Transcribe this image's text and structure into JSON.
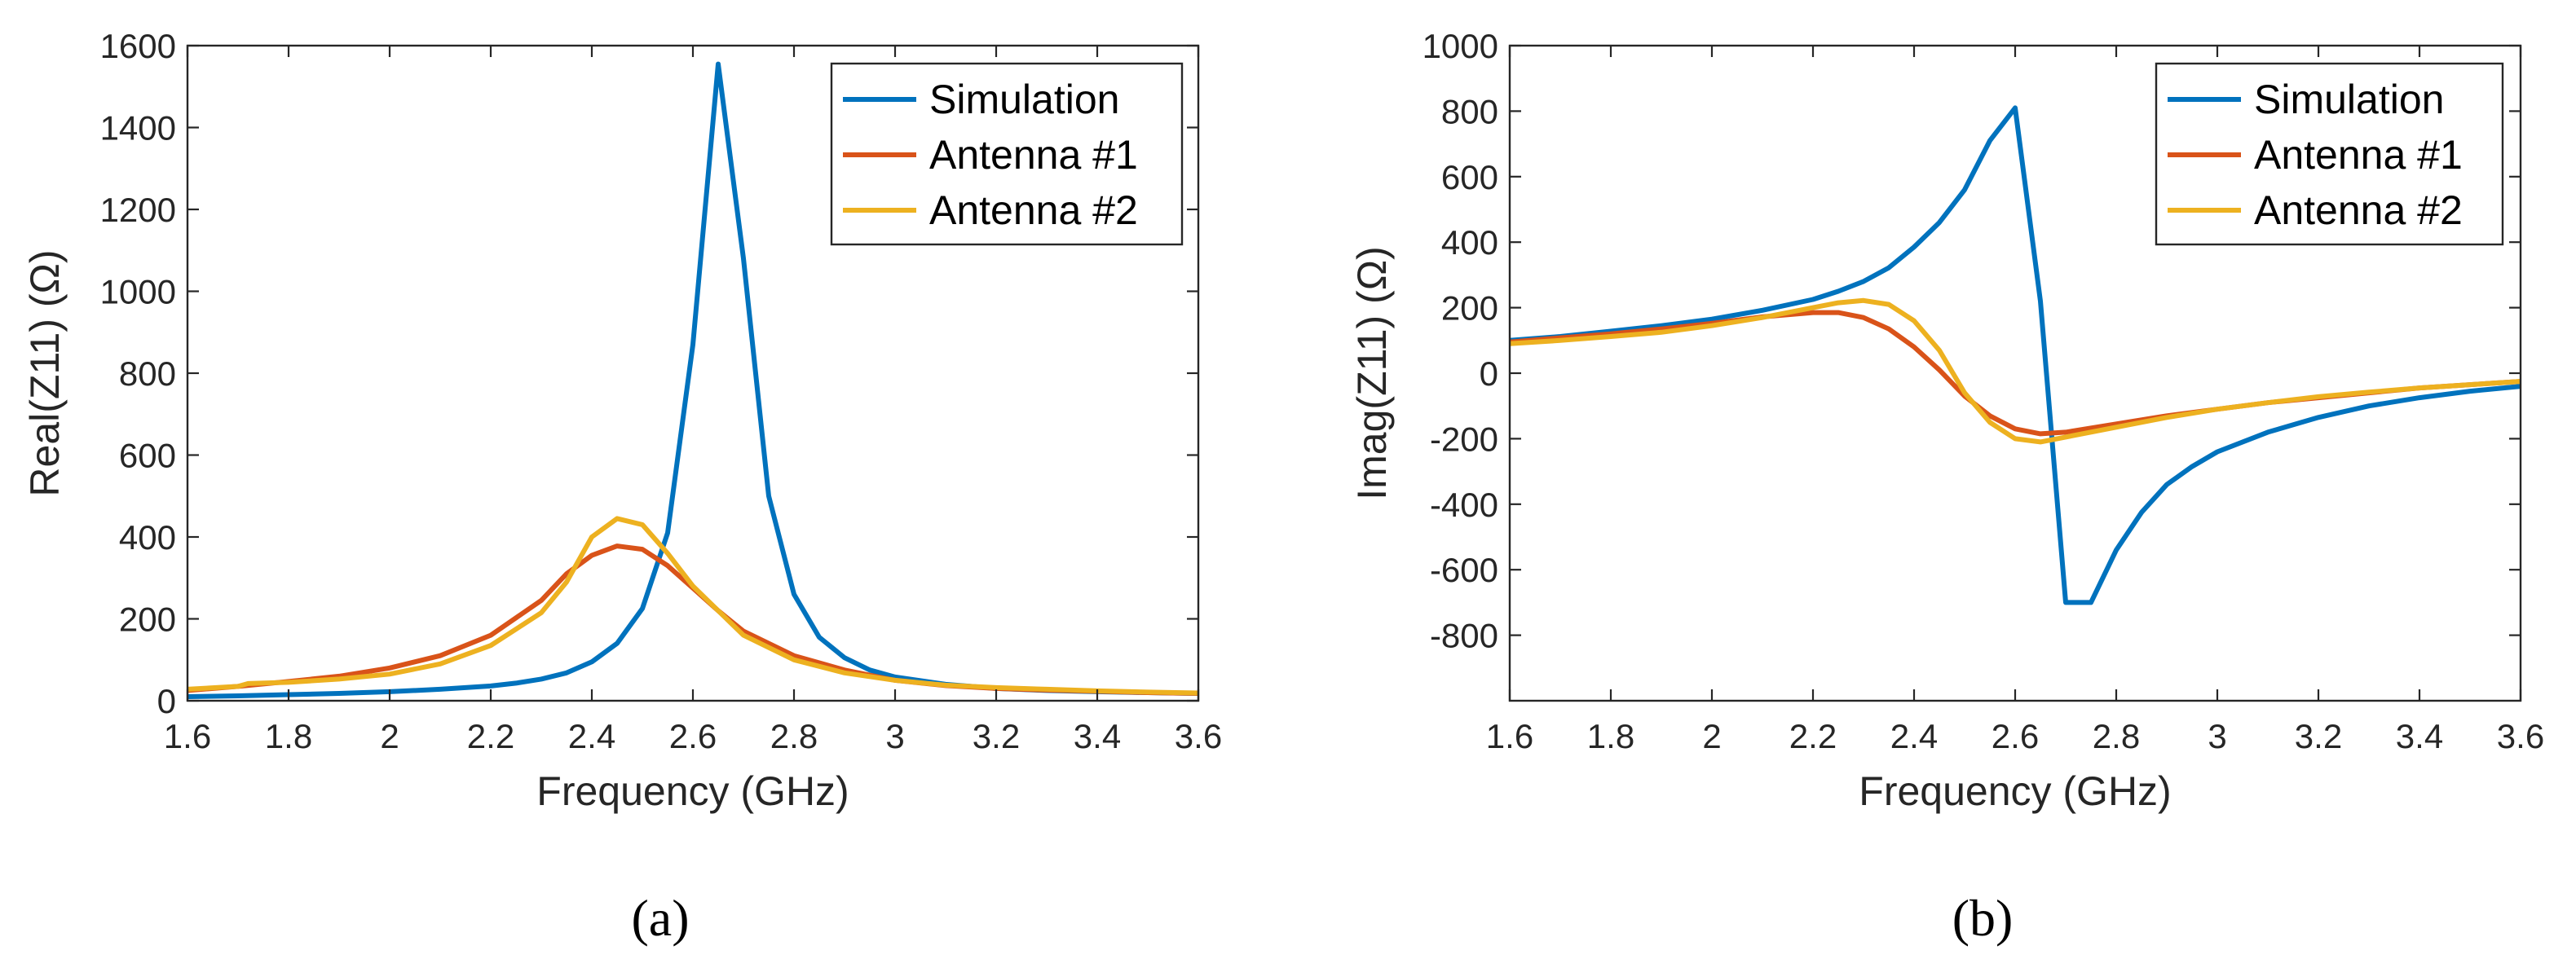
{
  "chart_data": [
    {
      "type": "line",
      "panel_label": "(a)",
      "xlabel": "Frequency (GHz)",
      "ylabel": "Real(Z11) (Ω)",
      "xlim": [
        1.6,
        3.6
      ],
      "ylim": [
        0,
        1600
      ],
      "xticks": [
        1.6,
        1.8,
        2,
        2.2,
        2.4,
        2.6,
        2.8,
        3,
        3.2,
        3.4,
        3.6
      ],
      "xtick_labels": [
        "1.6",
        "1.8",
        "2",
        "2.2",
        "2.4",
        "2.6",
        "2.8",
        "3",
        "3.2",
        "3.4",
        "3.6"
      ],
      "yticks": [
        0,
        200,
        400,
        600,
        800,
        1000,
        1200,
        1400,
        1600
      ],
      "ytick_labels": [
        "0",
        "200",
        "400",
        "600",
        "800",
        "1000",
        "1200",
        "1400",
        "1600"
      ],
      "legend_position": "top-right",
      "series": [
        {
          "name": "Simulation",
          "color": "#0072BD",
          "x": [
            1.6,
            1.7,
            1.8,
            1.9,
            2.0,
            2.1,
            2.2,
            2.25,
            2.3,
            2.35,
            2.4,
            2.45,
            2.5,
            2.55,
            2.6,
            2.65,
            2.7,
            2.75,
            2.8,
            2.85,
            2.9,
            2.95,
            3.0,
            3.1,
            3.2,
            3.3,
            3.4,
            3.5,
            3.6
          ],
          "y": [
            10,
            12,
            15,
            18,
            22,
            28,
            36,
            43,
            53,
            68,
            95,
            140,
            225,
            410,
            870,
            1555,
            1080,
            500,
            260,
            155,
            105,
            75,
            58,
            40,
            30,
            25,
            22,
            20,
            18
          ]
        },
        {
          "name": "Antenna #1",
          "color": "#D95319",
          "x": [
            1.6,
            1.7,
            1.8,
            1.9,
            2.0,
            2.1,
            2.2,
            2.3,
            2.35,
            2.4,
            2.45,
            2.5,
            2.55,
            2.6,
            2.65,
            2.7,
            2.8,
            2.9,
            3.0,
            3.1,
            3.2,
            3.3,
            3.4,
            3.5,
            3.6
          ],
          "y": [
            25,
            35,
            47,
            60,
            80,
            110,
            160,
            245,
            310,
            355,
            378,
            370,
            330,
            275,
            220,
            170,
            110,
            75,
            50,
            37,
            30,
            26,
            23,
            20,
            18
          ]
        },
        {
          "name": "Antenna #2",
          "color": "#EDB120",
          "x": [
            1.6,
            1.7,
            1.72,
            1.8,
            1.9,
            2.0,
            2.1,
            2.2,
            2.3,
            2.35,
            2.4,
            2.45,
            2.5,
            2.55,
            2.6,
            2.65,
            2.7,
            2.8,
            2.9,
            3.0,
            3.1,
            3.2,
            3.3,
            3.4,
            3.5,
            3.6
          ],
          "y": [
            28,
            35,
            42,
            45,
            53,
            65,
            90,
            135,
            215,
            290,
            400,
            445,
            430,
            360,
            280,
            220,
            160,
            100,
            68,
            50,
            38,
            32,
            28,
            24,
            21,
            19
          ]
        }
      ]
    },
    {
      "type": "line",
      "panel_label": "(b)",
      "xlabel": "Frequency (GHz)",
      "ylabel": "Imag(Z11) (Ω)",
      "xlim": [
        1.6,
        3.6
      ],
      "ylim": [
        -1000,
        1000
      ],
      "xticks": [
        1.6,
        1.8,
        2,
        2.2,
        2.4,
        2.6,
        2.8,
        3,
        3.2,
        3.4,
        3.6
      ],
      "xtick_labels": [
        "1.6",
        "1.8",
        "2",
        "2.2",
        "2.4",
        "2.6",
        "2.8",
        "3",
        "3.2",
        "3.4",
        "3.6"
      ],
      "yticks": [
        -800,
        -600,
        -400,
        -200,
        0,
        200,
        400,
        600,
        800,
        1000
      ],
      "ytick_labels": [
        "-800",
        "-600",
        "-400",
        "-200",
        "0",
        "200",
        "400",
        "600",
        "800",
        "1000"
      ],
      "legend_position": "top-right",
      "series": [
        {
          "name": "Simulation",
          "color": "#0072BD",
          "x": [
            1.6,
            1.7,
            1.8,
            1.9,
            2.0,
            2.1,
            2.2,
            2.25,
            2.3,
            2.35,
            2.4,
            2.45,
            2.5,
            2.55,
            2.6,
            2.65,
            2.7,
            2.75,
            2.8,
            2.85,
            2.9,
            2.95,
            3.0,
            3.1,
            3.2,
            3.3,
            3.4,
            3.5,
            3.6
          ],
          "y": [
            100,
            112,
            128,
            145,
            165,
            192,
            225,
            250,
            280,
            322,
            385,
            460,
            560,
            710,
            810,
            220,
            -700,
            -700,
            -540,
            -425,
            -340,
            -285,
            -240,
            -180,
            -135,
            -100,
            -75,
            -55,
            -40
          ]
        },
        {
          "name": "Antenna #1",
          "color": "#D95319",
          "x": [
            1.6,
            1.7,
            1.8,
            1.9,
            2.0,
            2.1,
            2.2,
            2.25,
            2.3,
            2.35,
            2.4,
            2.45,
            2.5,
            2.55,
            2.6,
            2.65,
            2.7,
            2.8,
            2.9,
            3.0,
            3.1,
            3.2,
            3.3,
            3.4,
            3.5,
            3.6
          ],
          "y": [
            95,
            108,
            120,
            135,
            152,
            172,
            185,
            185,
            170,
            135,
            80,
            10,
            -70,
            -130,
            -170,
            -185,
            -180,
            -155,
            -130,
            -110,
            -90,
            -75,
            -60,
            -45,
            -35,
            -25
          ]
        },
        {
          "name": "Antenna #2",
          "color": "#EDB120",
          "x": [
            1.6,
            1.7,
            1.8,
            1.9,
            2.0,
            2.1,
            2.2,
            2.25,
            2.3,
            2.35,
            2.4,
            2.45,
            2.5,
            2.55,
            2.6,
            2.65,
            2.7,
            2.8,
            2.9,
            3.0,
            3.1,
            3.2,
            3.3,
            3.4,
            3.5,
            3.6
          ],
          "y": [
            90,
            100,
            112,
            125,
            145,
            170,
            200,
            215,
            222,
            210,
            160,
            70,
            -60,
            -150,
            -200,
            -210,
            -195,
            -165,
            -135,
            -110,
            -90,
            -72,
            -58,
            -45,
            -35,
            -25
          ]
        }
      ]
    }
  ]
}
